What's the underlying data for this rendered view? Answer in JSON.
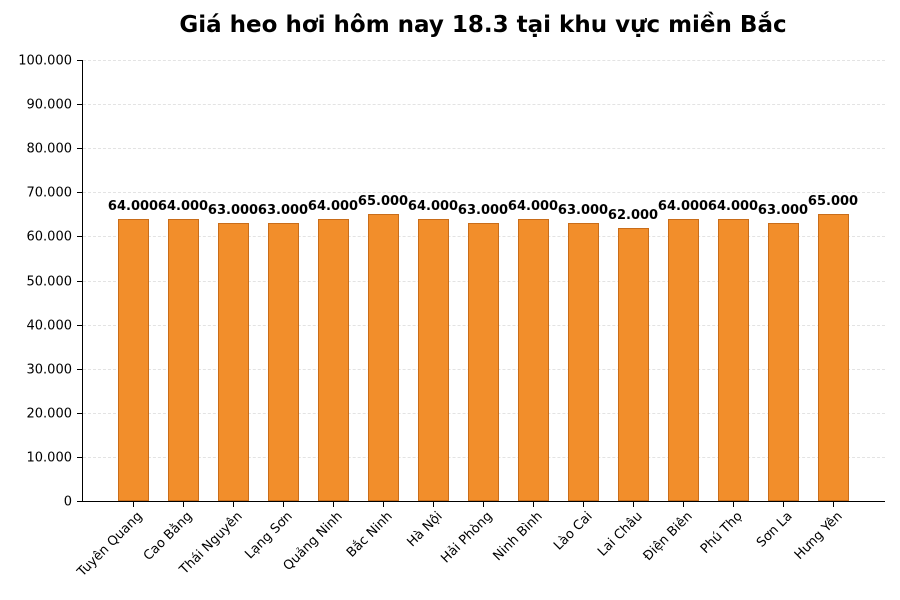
{
  "chart_data": {
    "type": "bar",
    "title": "Giá heo hơi hôm nay 18.3 tại khu vực miền Bắc",
    "xlabel": "",
    "ylabel": "",
    "ylim": [
      0,
      100000
    ],
    "yticks": [
      0,
      10000,
      20000,
      30000,
      40000,
      50000,
      60000,
      70000,
      80000,
      90000,
      100000
    ],
    "ytick_labels": [
      "0",
      "10.000",
      "20.000",
      "30.000",
      "40.000",
      "50.000",
      "60.000",
      "70.000",
      "80.000",
      "90.000",
      "100.000"
    ],
    "grid": "horizontal dashed",
    "legend": null,
    "bar_color": "#f28e2b",
    "bar_edge_color": "#c96d1a",
    "categories": [
      "Tuyên Quang",
      "Cao Bằng",
      "Thái Nguyên",
      "Lạng Sơn",
      "Quảng Ninh",
      "Bắc Ninh",
      "Hà Nội",
      "Hải Phòng",
      "Ninh Bình",
      "Lào Cai",
      "Lai Châu",
      "Điện Biên",
      "Phú Thọ",
      "Sơn La",
      "Hưng Yên"
    ],
    "values": [
      64000,
      64000,
      63000,
      63000,
      64000,
      65000,
      64000,
      63000,
      64000,
      63000,
      62000,
      64000,
      64000,
      63000,
      65000
    ],
    "value_labels": [
      "64.000",
      "64.000",
      "63.000",
      "63.000",
      "64.000",
      "65.000",
      "64.000",
      "63.000",
      "64.000",
      "63.000",
      "62.000",
      "64.000",
      "64.000",
      "63.000",
      "65.000"
    ]
  }
}
